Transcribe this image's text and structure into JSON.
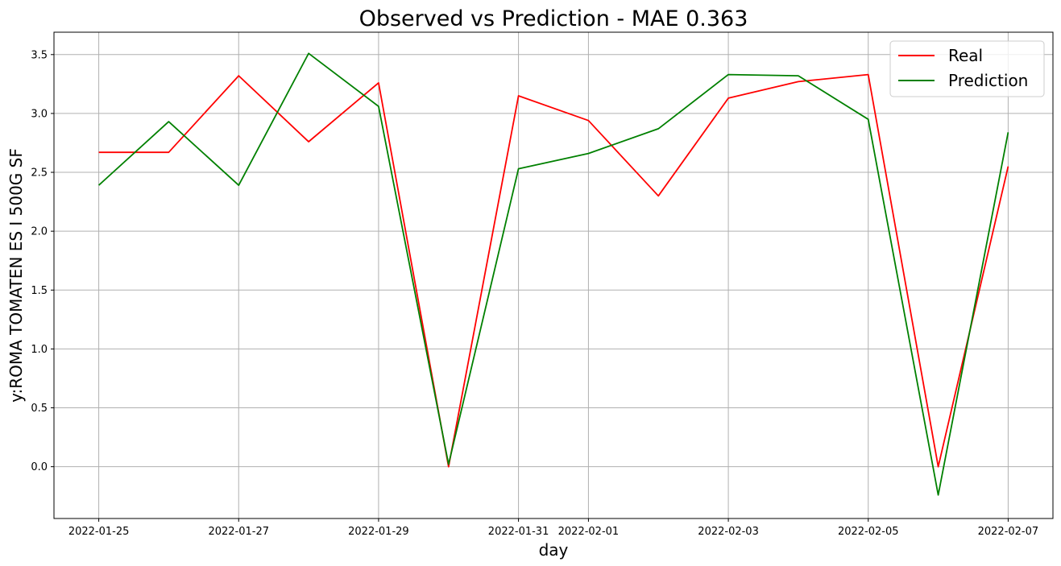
{
  "chart_data": {
    "type": "line",
    "title": "Observed vs Prediction - MAE 0.363",
    "xlabel": "day",
    "ylabel": "y:ROMA TOMATEN ES I 500G SF",
    "x": [
      "2022-01-25",
      "2022-01-26",
      "2022-01-27",
      "2022-01-28",
      "2022-01-29",
      "2022-01-30",
      "2022-01-31",
      "2022-02-01",
      "2022-02-02",
      "2022-02-03",
      "2022-02-04",
      "2022-02-05",
      "2022-02-06",
      "2022-02-07"
    ],
    "x_ticks": [
      "2022-01-25",
      "2022-01-27",
      "2022-01-29",
      "2022-01-31",
      "2022-02-01",
      "2022-02-03",
      "2022-02-05",
      "2022-02-07"
    ],
    "y_ticks": [
      "0.0",
      "0.5",
      "1.0",
      "1.5",
      "2.0",
      "2.5",
      "3.0",
      "3.5"
    ],
    "ylim": [
      -0.44,
      3.69
    ],
    "xlim": [
      "2022-01-24T08:38",
      "2022-02-07T15:22"
    ],
    "grid": true,
    "legend_position": "top-right",
    "series": [
      {
        "name": "Real",
        "color": "#ff0000",
        "values": [
          2.67,
          2.67,
          3.32,
          2.76,
          3.26,
          0.0,
          3.15,
          2.94,
          2.3,
          3.13,
          3.27,
          3.33,
          0.0,
          2.55
        ]
      },
      {
        "name": "Prediction",
        "color": "#008000",
        "values": [
          2.39,
          2.93,
          2.39,
          3.51,
          3.06,
          0.02,
          2.53,
          2.66,
          2.87,
          3.33,
          3.32,
          2.95,
          -0.24,
          2.84
        ]
      }
    ]
  }
}
